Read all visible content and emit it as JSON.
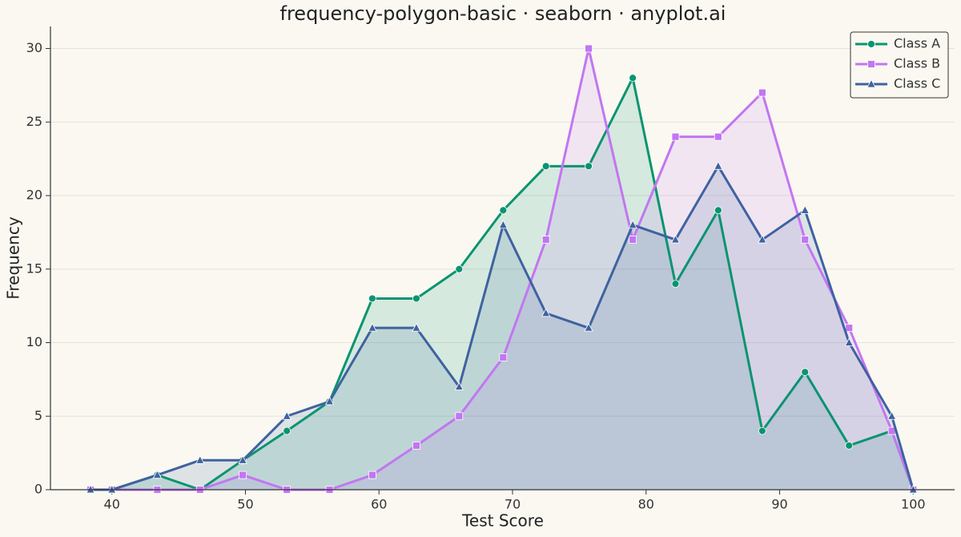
{
  "chart_data": {
    "type": "line",
    "title": "frequency-polygon-basic · seaborn · anyplot.ai",
    "x_label": "Test Score",
    "y_label": "Frequency",
    "x": [
      38.4,
      40,
      43.4,
      46.6,
      49.8,
      53.1,
      56.3,
      59.5,
      62.8,
      66.0,
      69.3,
      72.5,
      75.7,
      79.0,
      82.2,
      85.4,
      88.7,
      91.9,
      95.2,
      98.4,
      100
    ],
    "series": [
      {
        "name": "Class A",
        "color": "#0a9470",
        "marker": "circle",
        "values": [
          0,
          0,
          1,
          0,
          2,
          4,
          6,
          13,
          13,
          15,
          19,
          22,
          22,
          28,
          14,
          19,
          4,
          8,
          3,
          4,
          0
        ]
      },
      {
        "name": "Class B",
        "color": "#c276f2",
        "marker": "square",
        "values": [
          0,
          0,
          0,
          0,
          1,
          0,
          0,
          1,
          3,
          5,
          9,
          17,
          30,
          17,
          24,
          24,
          27,
          17,
          11,
          4,
          0
        ]
      },
      {
        "name": "Class C",
        "color": "#3f62a0",
        "marker": "triangle",
        "values": [
          0,
          0,
          1,
          2,
          2,
          5,
          6,
          11,
          11,
          7,
          18,
          12,
          11,
          18,
          17,
          22,
          17,
          19,
          10,
          5,
          0
        ]
      }
    ],
    "xlim": [
      35.4,
      103.1
    ],
    "xticks": [
      40,
      50,
      60,
      70,
      80,
      90,
      100
    ],
    "ylim": [
      0,
      31.5
    ],
    "yticks": [
      0,
      5,
      10,
      15,
      20,
      25,
      30
    ],
    "grid": true,
    "legend": "upper right"
  }
}
